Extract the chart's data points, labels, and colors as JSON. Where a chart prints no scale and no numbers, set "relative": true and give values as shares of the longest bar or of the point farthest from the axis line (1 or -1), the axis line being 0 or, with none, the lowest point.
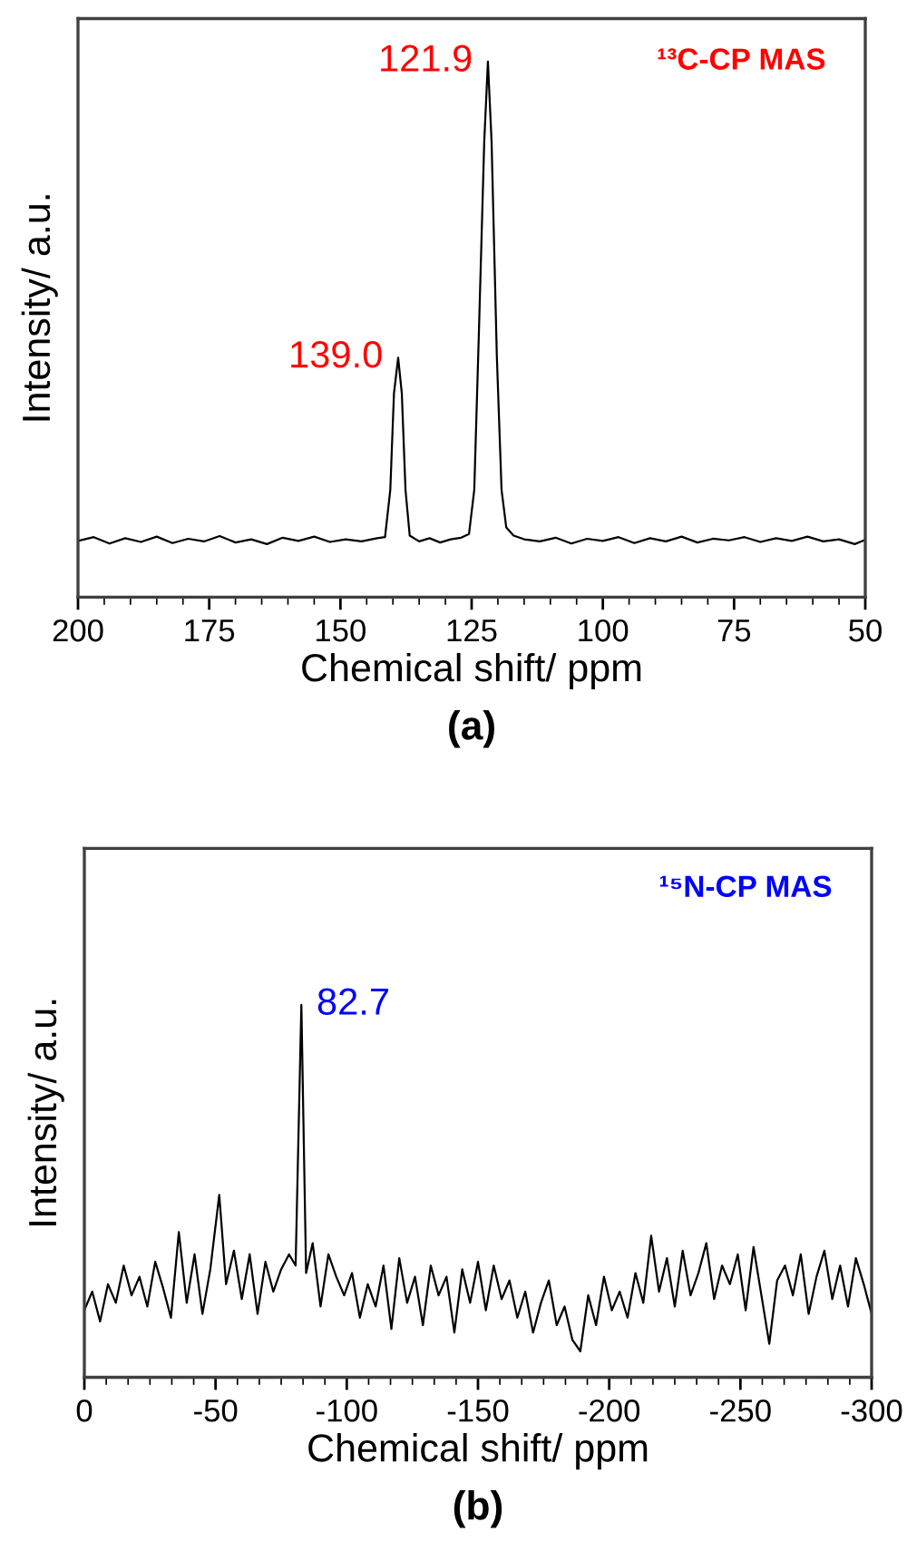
{
  "chart_data": [
    {
      "type": "line",
      "title": "(a)",
      "xlabel": "Chemical shift/ ppm",
      "ylabel": "Intensity/ a.u.",
      "relative": true,
      "tick_labels": "x",
      "grid": false,
      "marker": "none",
      "line_style": "solid",
      "xlim": [
        200,
        50
      ],
      "xticks": [
        200,
        175,
        150,
        125,
        100,
        75,
        50
      ],
      "annotations": [
        "¹³C-CP MAS",
        {
          "text": "139.0",
          "x": 139.0,
          "y": 0.447
        },
        {
          "text": "121.9",
          "x": 121.9,
          "y": 1
        }
      ],
      "series": [
        {
          "color": "#000000",
          "x": [
            200,
            197,
            194,
            191,
            188,
            185,
            182,
            179,
            176,
            173,
            170,
            167,
            164,
            161,
            158,
            155,
            152,
            149,
            146,
            143,
            141.5,
            140.5,
            139.8,
            139.0,
            138.3,
            137.6,
            136.8,
            135,
            133,
            131,
            129,
            127,
            125.5,
            124.5,
            123.6,
            122.6,
            121.9,
            121.2,
            120.2,
            119.3,
            118.4,
            117,
            115,
            112,
            109,
            106,
            103,
            100,
            97,
            94,
            91,
            88,
            85,
            82,
            79,
            76,
            73,
            70,
            67,
            64,
            61,
            58,
            55,
            52,
            50
          ],
          "values": [
            0.105,
            0.112,
            0.1,
            0.11,
            0.103,
            0.113,
            0.101,
            0.109,
            0.104,
            0.114,
            0.102,
            0.108,
            0.099,
            0.111,
            0.105,
            0.113,
            0.103,
            0.108,
            0.104,
            0.11,
            0.112,
            0.2,
            0.38,
            0.447,
            0.38,
            0.2,
            0.115,
            0.104,
            0.11,
            0.102,
            0.108,
            0.111,
            0.118,
            0.2,
            0.5,
            0.85,
            1,
            0.85,
            0.45,
            0.2,
            0.13,
            0.115,
            0.108,
            0.104,
            0.111,
            0.1,
            0.109,
            0.105,
            0.112,
            0.101,
            0.11,
            0.104,
            0.113,
            0.102,
            0.109,
            0.106,
            0.112,
            0.103,
            0.11,
            0.105,
            0.113,
            0.104,
            0.108,
            0.099,
            0.107
          ]
        }
      ]
    },
    {
      "type": "line",
      "title": "(b)",
      "xlabel": "Chemical shift/ ppm",
      "ylabel": "Intensity/ a.u.",
      "relative": true,
      "tick_labels": "x",
      "grid": false,
      "marker": "none",
      "line_style": "solid",
      "xlim": [
        0,
        -300
      ],
      "xticks": [
        0,
        -50,
        -100,
        -150,
        -200,
        -250,
        -300
      ],
      "annotations": [
        "¹⁵N-CP MAS",
        {
          "text": "82.7",
          "x": -82.7,
          "y": 1
        }
      ],
      "series": [
        {
          "color": "#000000",
          "x": [
            0,
            -3,
            -6,
            -9,
            -12,
            -15,
            -18,
            -21,
            -24,
            -27,
            -30,
            -33,
            -36,
            -39,
            -42,
            -45,
            -48,
            -51.4,
            -54,
            -57,
            -60,
            -63,
            -66,
            -69,
            -72,
            -75,
            -78,
            -80.5,
            -82.7,
            -84.5,
            -87,
            -90,
            -93,
            -96,
            -99,
            -102,
            -105,
            -108,
            -111,
            -114,
            -117,
            -120,
            -123,
            -126,
            -129,
            -132,
            -135,
            -138,
            -141,
            -144,
            -147,
            -150,
            -153,
            -156,
            -159,
            -162,
            -165,
            -168,
            -171,
            -174,
            -177,
            -180,
            -183,
            -186,
            -189,
            -192,
            -195,
            -198,
            -201,
            -204,
            -207,
            -210,
            -213,
            -216,
            -219,
            -222,
            -225,
            -228,
            -231,
            -234,
            -237,
            -240,
            -243,
            -246,
            -249,
            -252,
            -255,
            -258,
            -261,
            -264,
            -267,
            -270,
            -273,
            -276,
            -279,
            -282,
            -285,
            -288,
            -291,
            -294,
            -297,
            -300
          ],
          "values": [
            0.18,
            0.23,
            0.15,
            0.25,
            0.2,
            0.3,
            0.22,
            0.27,
            0.19,
            0.31,
            0.24,
            0.16,
            0.39,
            0.2,
            0.33,
            0.17,
            0.29,
            0.49,
            0.25,
            0.34,
            0.21,
            0.33,
            0.17,
            0.31,
            0.23,
            0.29,
            0.33,
            0.3,
            1,
            0.28,
            0.36,
            0.19,
            0.33,
            0.27,
            0.22,
            0.28,
            0.16,
            0.25,
            0.19,
            0.3,
            0.13,
            0.32,
            0.2,
            0.27,
            0.14,
            0.3,
            0.22,
            0.27,
            0.12,
            0.29,
            0.2,
            0.31,
            0.18,
            0.3,
            0.21,
            0.26,
            0.16,
            0.23,
            0.12,
            0.2,
            0.26,
            0.14,
            0.19,
            0.1,
            0.07,
            0.22,
            0.14,
            0.27,
            0.18,
            0.23,
            0.16,
            0.28,
            0.2,
            0.38,
            0.23,
            0.32,
            0.19,
            0.34,
            0.22,
            0.28,
            0.36,
            0.21,
            0.3,
            0.25,
            0.33,
            0.18,
            0.35,
            0.22,
            0.09,
            0.26,
            0.3,
            0.22,
            0.33,
            0.17,
            0.27,
            0.34,
            0.21,
            0.3,
            0.19,
            0.32,
            0.25,
            0.17
          ]
        }
      ]
    }
  ]
}
